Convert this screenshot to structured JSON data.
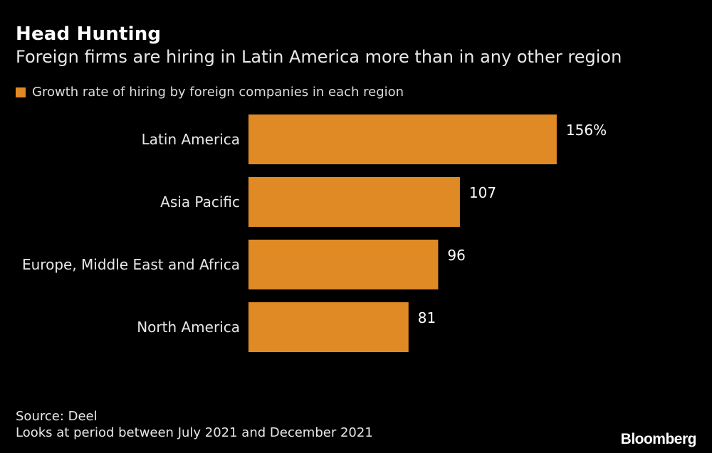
{
  "colors": {
    "bar": "#e08a26",
    "background": "#000000",
    "text": "#ffffff"
  },
  "chart_data": {
    "type": "bar",
    "orientation": "horizontal",
    "title": "Head Hunting",
    "subtitle": "Foreign firms are hiring in Latin America more than in any other region",
    "legend": "Growth rate of hiring by foreign companies in each region",
    "categories": [
      "Latin America",
      "Asia Pacific",
      "Europe, Middle East and Africa",
      "North America"
    ],
    "values": [
      156,
      107,
      96,
      81
    ],
    "value_labels": [
      "156%",
      "107",
      "96",
      "81"
    ],
    "xlim": [
      0,
      160
    ],
    "grid": false
  },
  "footer": {
    "source": "Source: Deel",
    "note": "Looks at period between July 2021 and December 2021"
  },
  "brand": "Bloomberg"
}
